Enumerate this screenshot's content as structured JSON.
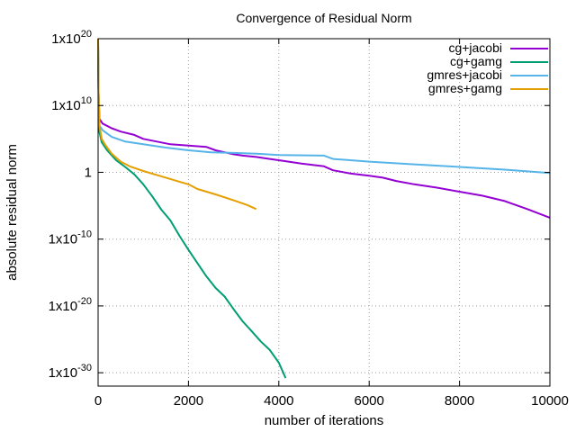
{
  "chart_data": {
    "type": "line",
    "title": "Convergence of Residual Norm",
    "xlabel": "number of iterations",
    "ylabel": "absolute residual norm",
    "xlim": [
      0,
      10000
    ],
    "ylim_exp": [
      -32,
      20
    ],
    "y_scale": "log",
    "grid": true,
    "legend_position": "top-right",
    "x_ticks": [
      {
        "value": 0,
        "label": "0"
      },
      {
        "value": 2000,
        "label": "2000"
      },
      {
        "value": 4000,
        "label": "4000"
      },
      {
        "value": 6000,
        "label": "6000"
      },
      {
        "value": 8000,
        "label": "8000"
      },
      {
        "value": 10000,
        "label": "10000"
      }
    ],
    "y_ticks": [
      {
        "exp": 20,
        "base": "1x10",
        "sup": "20"
      },
      {
        "exp": 10,
        "base": "1x10",
        "sup": "10"
      },
      {
        "exp": 0,
        "base": "1",
        "sup": ""
      },
      {
        "exp": -10,
        "base": "1x10",
        "sup": "-10"
      },
      {
        "exp": -20,
        "base": "1x10",
        "sup": "-20"
      },
      {
        "exp": -30,
        "base": "1x10",
        "sup": "-30"
      }
    ],
    "series": [
      {
        "name": "cg+jacobi",
        "color": "#9400d3",
        "points": [
          [
            0,
            19
          ],
          [
            10,
            12
          ],
          [
            30,
            8
          ],
          [
            100,
            7.3
          ],
          [
            300,
            6.6
          ],
          [
            500,
            6.1
          ],
          [
            800,
            5.6
          ],
          [
            1000,
            5.0
          ],
          [
            1300,
            4.6
          ],
          [
            1600,
            4.2
          ],
          [
            2000,
            4.0
          ],
          [
            2200,
            3.9
          ],
          [
            2400,
            3.8
          ],
          [
            2600,
            3.3
          ],
          [
            3000,
            2.7
          ],
          [
            3200,
            2.5
          ],
          [
            3500,
            2.3
          ],
          [
            3800,
            2.0
          ],
          [
            4100,
            1.7
          ],
          [
            4500,
            1.3
          ],
          [
            5000,
            0.9
          ],
          [
            5200,
            0.3
          ],
          [
            5600,
            -0.2
          ],
          [
            6000,
            -0.5
          ],
          [
            6300,
            -0.8
          ],
          [
            6600,
            -1.3
          ],
          [
            7000,
            -1.8
          ],
          [
            7500,
            -2.3
          ],
          [
            8000,
            -2.9
          ],
          [
            8500,
            -3.5
          ],
          [
            9000,
            -4.3
          ],
          [
            9500,
            -5.5
          ],
          [
            10000,
            -6.8
          ]
        ]
      },
      {
        "name": "cg+gamg",
        "color": "#009e73",
        "points": [
          [
            0,
            20
          ],
          [
            10,
            12
          ],
          [
            30,
            6
          ],
          [
            80,
            4.5
          ],
          [
            200,
            3.3
          ],
          [
            400,
            1.8
          ],
          [
            600,
            0.8
          ],
          [
            800,
            -0.3
          ],
          [
            1000,
            -1.8
          ],
          [
            1200,
            -3.6
          ],
          [
            1400,
            -5.6
          ],
          [
            1600,
            -7.2
          ],
          [
            1800,
            -9.5
          ],
          [
            2000,
            -11.6
          ],
          [
            2200,
            -13.6
          ],
          [
            2400,
            -15.6
          ],
          [
            2600,
            -17.3
          ],
          [
            2800,
            -18.6
          ],
          [
            3000,
            -20.5
          ],
          [
            3200,
            -22.3
          ],
          [
            3400,
            -23.8
          ],
          [
            3600,
            -25.3
          ],
          [
            3800,
            -26.6
          ],
          [
            4000,
            -28.5
          ],
          [
            4100,
            -30.0
          ],
          [
            4150,
            -30.8
          ]
        ]
      },
      {
        "name": "gmres+jacobi",
        "color": "#56b4e9",
        "points": [
          [
            0,
            19
          ],
          [
            10,
            12
          ],
          [
            30,
            7
          ],
          [
            100,
            6.3
          ],
          [
            300,
            5.3
          ],
          [
            600,
            4.6
          ],
          [
            1000,
            4.2
          ],
          [
            1500,
            3.7
          ],
          [
            2000,
            3.3
          ],
          [
            2500,
            3.0
          ],
          [
            3000,
            2.9
          ],
          [
            3500,
            2.8
          ],
          [
            4000,
            2.6
          ],
          [
            5000,
            2.5
          ],
          [
            5200,
            2.0
          ],
          [
            6000,
            1.6
          ],
          [
            7000,
            1.2
          ],
          [
            8000,
            0.8
          ],
          [
            9000,
            0.4
          ],
          [
            10000,
            -0.1
          ]
        ]
      },
      {
        "name": "gmres+gamg",
        "color": "#e69f00",
        "points": [
          [
            0,
            20
          ],
          [
            10,
            12
          ],
          [
            30,
            7
          ],
          [
            80,
            5
          ],
          [
            150,
            4.2
          ],
          [
            300,
            2.8
          ],
          [
            500,
            1.6
          ],
          [
            700,
            0.9
          ],
          [
            1000,
            0.2
          ],
          [
            1400,
            -0.6
          ],
          [
            1800,
            -1.4
          ],
          [
            2000,
            -1.8
          ],
          [
            2200,
            -2.5
          ],
          [
            2600,
            -3.3
          ],
          [
            3000,
            -4.2
          ],
          [
            3300,
            -4.9
          ],
          [
            3500,
            -5.5
          ]
        ]
      }
    ]
  }
}
